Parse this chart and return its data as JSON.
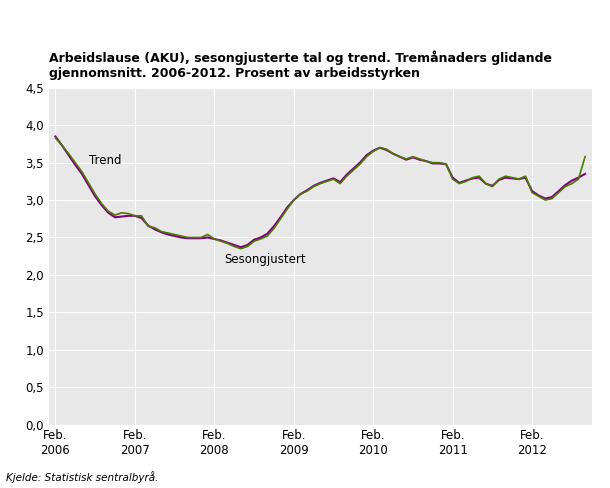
{
  "title": "Arbeidslause (AKU), sesongjusterte tal og trend. Tremånaders glidande\ngjennomsnitt. 2006-2012. Prosent av arbeidsstyrken",
  "source": "Kjelde: Statistisk sentralbyrå.",
  "ylim": [
    0.0,
    4.5
  ],
  "yticks": [
    0.0,
    0.5,
    1.0,
    1.5,
    2.0,
    2.5,
    3.0,
    3.5,
    4.0,
    4.5
  ],
  "fig_bg_color": "#ffffff",
  "plot_bg_color": "#e8e8e8",
  "trend_color": "#800080",
  "seas_color": "#4a7c00",
  "trend_label": "Trend",
  "seas_label": "Sesongjustert",
  "x_tick_positions": [
    0,
    12,
    24,
    36,
    48,
    60,
    72
  ],
  "x_tick_labels": [
    "Feb.\n2006",
    "Feb.\n2007",
    "Feb.\n2008",
    "Feb.\n2009",
    "Feb.\n2010",
    "Feb.\n2011",
    "Feb.\n2012"
  ],
  "sesongjustert": [
    3.83,
    3.73,
    3.62,
    3.5,
    3.38,
    3.23,
    3.08,
    2.95,
    2.85,
    2.8,
    2.83,
    2.82,
    2.79,
    2.79,
    2.65,
    2.63,
    2.58,
    2.56,
    2.54,
    2.52,
    2.5,
    2.5,
    2.5,
    2.54,
    2.48,
    2.45,
    2.42,
    2.38,
    2.35,
    2.38,
    2.45,
    2.48,
    2.52,
    2.62,
    2.75,
    2.88,
    3.0,
    3.08,
    3.12,
    3.18,
    3.22,
    3.25,
    3.28,
    3.22,
    3.32,
    3.4,
    3.48,
    3.58,
    3.65,
    3.7,
    3.68,
    3.62,
    3.58,
    3.55,
    3.58,
    3.55,
    3.52,
    3.5,
    3.5,
    3.48,
    3.28,
    3.22,
    3.25,
    3.3,
    3.32,
    3.22,
    3.18,
    3.28,
    3.32,
    3.3,
    3.28,
    3.32,
    3.1,
    3.05,
    3.0,
    3.02,
    3.1,
    3.18,
    3.22,
    3.28,
    3.58
  ],
  "trend": [
    3.85,
    3.73,
    3.6,
    3.47,
    3.35,
    3.2,
    3.05,
    2.93,
    2.83,
    2.77,
    2.78,
    2.79,
    2.79,
    2.76,
    2.66,
    2.61,
    2.57,
    2.54,
    2.52,
    2.5,
    2.49,
    2.49,
    2.49,
    2.5,
    2.48,
    2.46,
    2.43,
    2.4,
    2.37,
    2.4,
    2.47,
    2.5,
    2.55,
    2.65,
    2.77,
    2.9,
    3.0,
    3.08,
    3.13,
    3.19,
    3.23,
    3.26,
    3.29,
    3.24,
    3.34,
    3.42,
    3.5,
    3.6,
    3.66,
    3.7,
    3.67,
    3.62,
    3.58,
    3.54,
    3.57,
    3.54,
    3.52,
    3.49,
    3.49,
    3.48,
    3.3,
    3.23,
    3.26,
    3.29,
    3.3,
    3.22,
    3.19,
    3.27,
    3.3,
    3.29,
    3.28,
    3.3,
    3.12,
    3.06,
    3.02,
    3.04,
    3.12,
    3.2,
    3.26,
    3.3,
    3.35
  ]
}
